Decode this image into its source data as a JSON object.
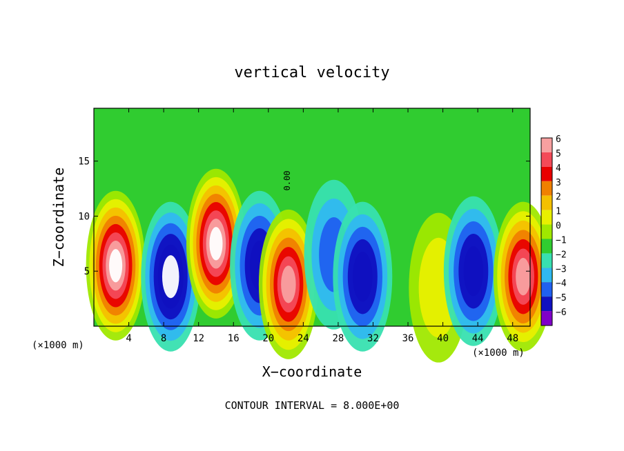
{
  "chart_data": {
    "type": "heatmap",
    "title": "vertical velocity",
    "xlabel": "X−coordinate",
    "ylabel": "Z−coordinate",
    "x_unit_left": "(×1000 m)",
    "x_unit_right": "(×1000 m)",
    "footer": "CONTOUR INTERVAL = 8.000E+00",
    "contour_label": "0.00",
    "xlim": [
      0,
      50
    ],
    "ylim": [
      0,
      19.8
    ],
    "x_ticks": [
      "4",
      "8",
      "12",
      "16",
      "20",
      "24",
      "28",
      "32",
      "36",
      "40",
      "44",
      "48"
    ],
    "y_ticks": [
      "5",
      "10",
      "15"
    ],
    "colorbar": {
      "labels": [
        "6",
        "5",
        "4",
        "3",
        "2",
        "1",
        "0",
        "−1",
        "−2",
        "−3",
        "−4",
        "−5",
        "−6"
      ],
      "colors": [
        "#f8a0a0",
        "#f44a58",
        "#e80000",
        "#f08000",
        "#f4c000",
        "#e8f000",
        "#a0e800",
        "#30cc30",
        "#38e0b0",
        "#30b8f0",
        "#2060f0",
        "#1010c0",
        "#8000c8"
      ]
    },
    "field_features": [
      {
        "x": 2.5,
        "z": 5.5,
        "w": 12
      },
      {
        "x": 8.8,
        "z": 4.5,
        "w": -12
      },
      {
        "x": 14.0,
        "z": 7.5,
        "w": 12
      },
      {
        "x": 19.0,
        "z": 5.5,
        "w": -9
      },
      {
        "x": 22.3,
        "z": 3.8,
        "w": 11
      },
      {
        "x": 27.5,
        "z": 6.5,
        "w": -6
      },
      {
        "x": 30.8,
        "z": 4.5,
        "w": -9
      },
      {
        "x": 39.5,
        "z": 3.5,
        "w": 3
      },
      {
        "x": 43.5,
        "z": 5.0,
        "w": -10
      },
      {
        "x": 49.2,
        "z": 4.5,
        "w": 10
      }
    ]
  }
}
